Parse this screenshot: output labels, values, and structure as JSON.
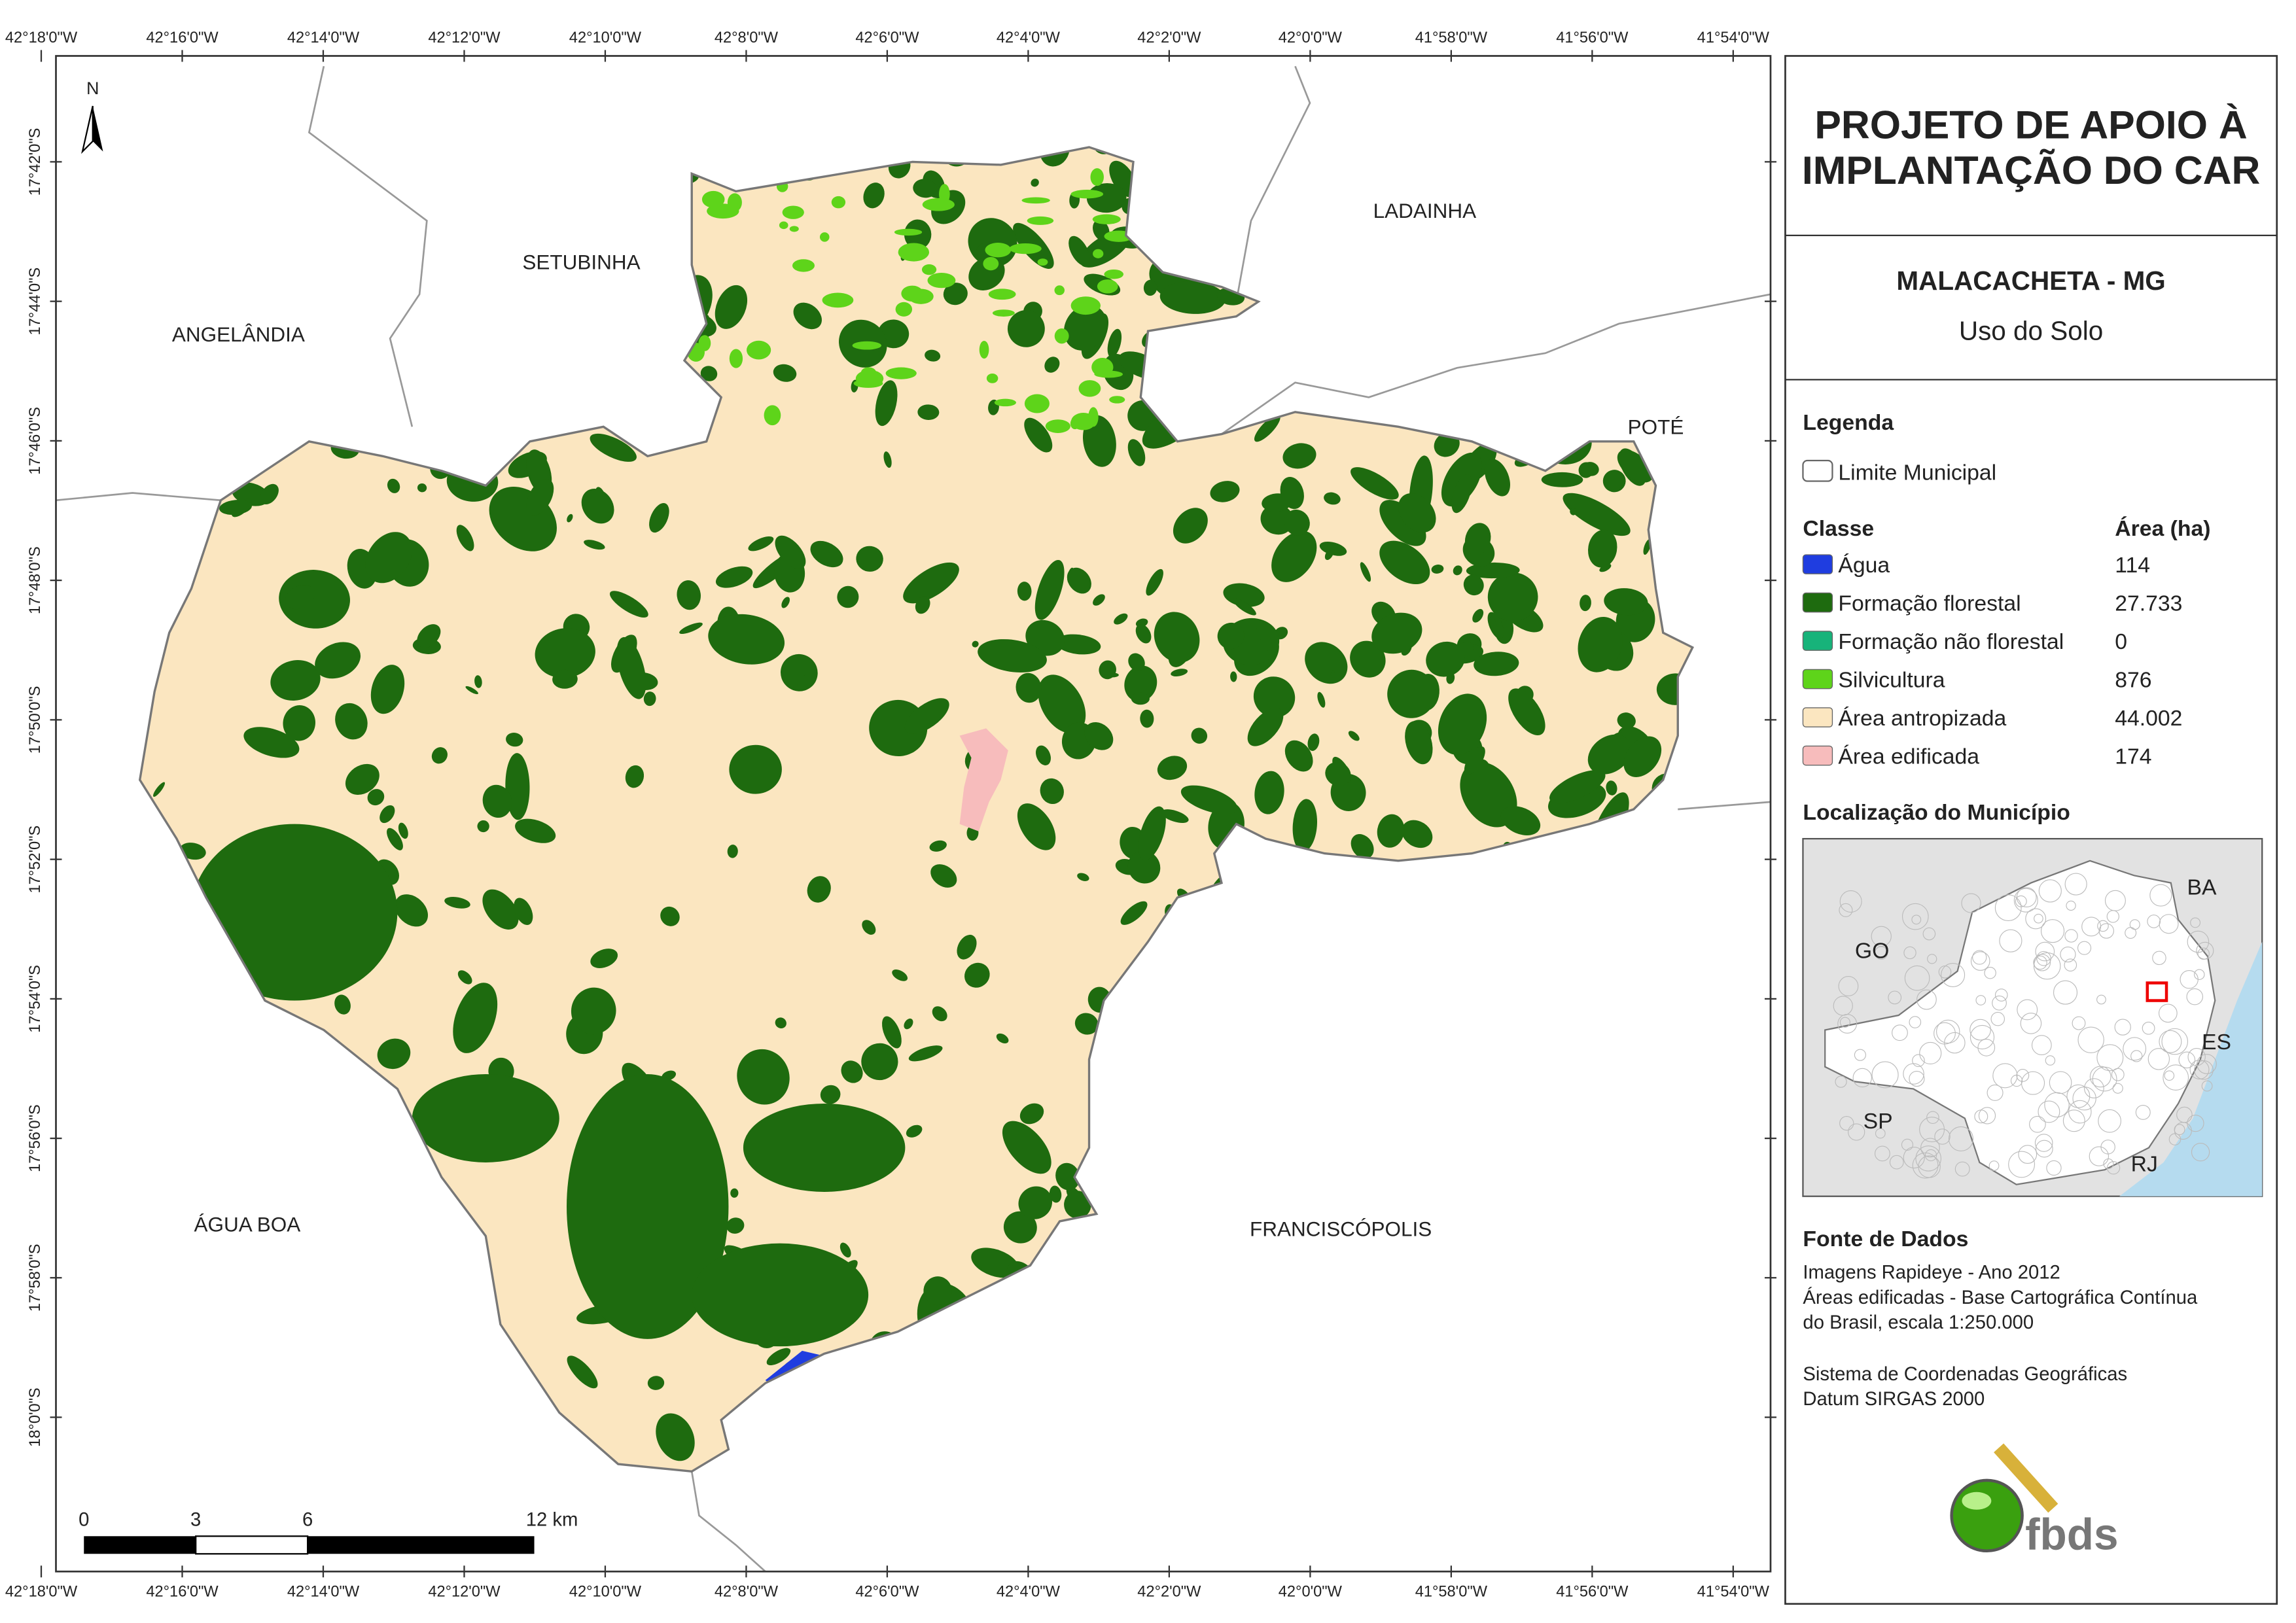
{
  "graticule": {
    "top": [
      "42°18'0\"W",
      "42°16'0\"W",
      "42°14'0\"W",
      "42°12'0\"W",
      "42°10'0\"W",
      "42°8'0\"W",
      "42°6'0\"W",
      "42°4'0\"W",
      "42°2'0\"W",
      "42°0'0\"W",
      "41°58'0\"W",
      "41°56'0\"W",
      "41°54'0\"W"
    ],
    "left": [
      "17°42'0\"S",
      "17°44'0\"S",
      "17°46'0\"S",
      "17°48'0\"S",
      "17°50'0\"S",
      "17°52'0\"S",
      "17°54'0\"S",
      "17°56'0\"S",
      "17°58'0\"S",
      "18°0'0\"S"
    ]
  },
  "map": {
    "north": "N",
    "places": [
      "SETUBINHA",
      "LADAINHA",
      "ANGELÂNDIA",
      "POTÉ",
      "ÁGUA BOA",
      "FRANCISCÓPOLIS"
    ],
    "scale": [
      "0",
      "3",
      "6",
      "12 km"
    ]
  },
  "header": {
    "title_lines": [
      "PROJETO DE APOIO À",
      "IMPLANTAÇÃO DO CAR"
    ],
    "municipality": "MALACACHETA - MG",
    "subtitle": "Uso do Solo"
  },
  "legend": {
    "title": "Legenda",
    "boundary": "Limite Municipal",
    "class_header": "Classe",
    "area_header": "Área (ha)",
    "rows": [
      {
        "label": "Água",
        "area": "114",
        "color": "#1f3de0"
      },
      {
        "label": "Formação florestal",
        "area": "27.733",
        "color": "#1e6b0f"
      },
      {
        "label": "Formação não florestal",
        "area": "0",
        "color": "#17b37a"
      },
      {
        "label": "Silvicultura",
        "area": "876",
        "color": "#5ed41a"
      },
      {
        "label": "Área antropizada",
        "area": "44.002",
        "color": "#fbe6c0"
      },
      {
        "label": "Área edificada",
        "area": "174",
        "color": "#f7bcbc"
      }
    ]
  },
  "location": {
    "title": "Localização do Município",
    "labels": [
      "BA",
      "GO",
      "ES",
      "SP",
      "RJ"
    ]
  },
  "sources": {
    "title": "Fonte de Dados",
    "lines": [
      "Imagens Rapideye - Ano 2012",
      "Áreas edificadas - Base Cartográfica Contínua",
      "do Brasil, escala 1:250.000"
    ],
    "crs": [
      "Sistema de Coordenadas Geográficas",
      "Datum SIRGAS 2000"
    ]
  },
  "logo": "fbds"
}
